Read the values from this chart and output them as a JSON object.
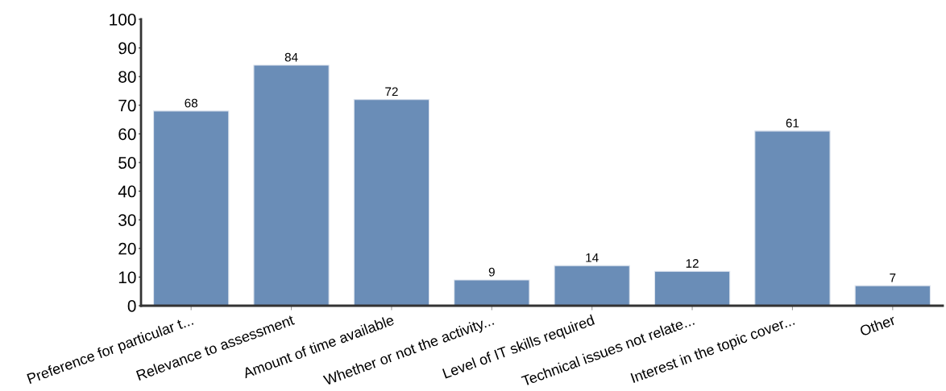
{
  "chart_data": {
    "type": "bar",
    "categories": [
      "Preference for particular t...",
      "Relevance to assessment",
      "Amount of time available",
      "Whether or not the activity...",
      "Level of IT skills required",
      "Technical issues not relate...",
      "Interest in the topic cover...",
      "Other"
    ],
    "values": [
      68,
      84,
      72,
      9,
      14,
      12,
      61,
      7
    ],
    "color": "#6a8db7",
    "ylim": [
      0,
      100
    ],
    "yticks": [
      0,
      10,
      20,
      30,
      40,
      50,
      60,
      70,
      80,
      90,
      100
    ],
    "data_labels": true,
    "grid": false,
    "legend": false
  }
}
